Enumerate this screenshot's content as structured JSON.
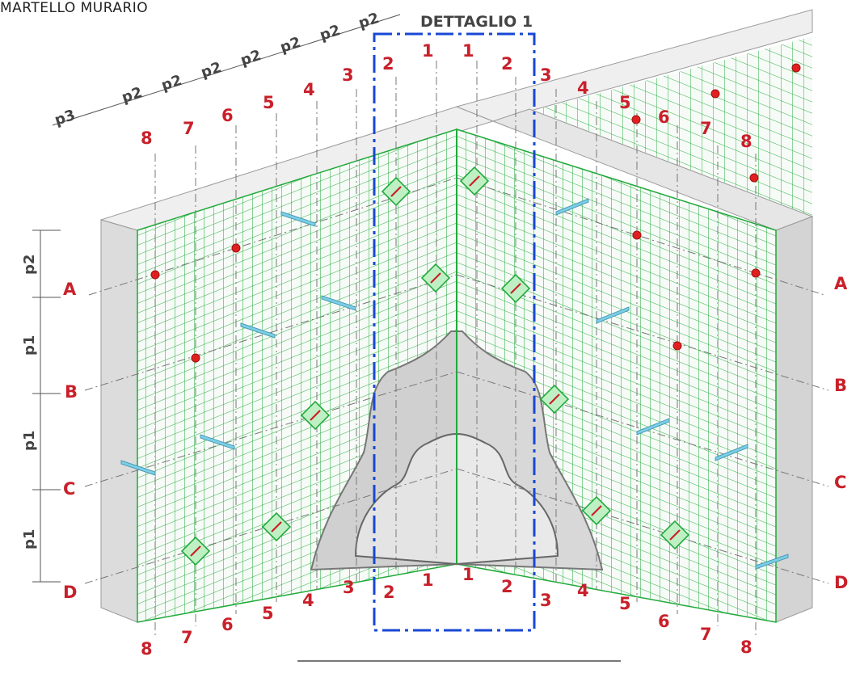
{
  "header_text": "MARTELLO MURARIO",
  "detail_label": "DETTAGLIO 1",
  "row_labels": [
    "A",
    "B",
    "C",
    "D"
  ],
  "column_labels": [
    "1",
    "2",
    "3",
    "4",
    "5",
    "6",
    "7",
    "8"
  ],
  "spacing_labels": {
    "p1": "p1",
    "p2": "p2",
    "p3": "p3"
  },
  "colors": {
    "grid": "#1faa3a",
    "label_red": "#c8202a",
    "detail_frame": "#1747d6",
    "connector_cyan": "#7ccfe6",
    "wall_top": "#efefef",
    "wall_side": "#d9d9d9",
    "corner_fill": "#cfcfcf"
  },
  "icons": [
    "anchor-connector-icon",
    "red-point-marker-icon",
    "dowel-bar-icon"
  ]
}
